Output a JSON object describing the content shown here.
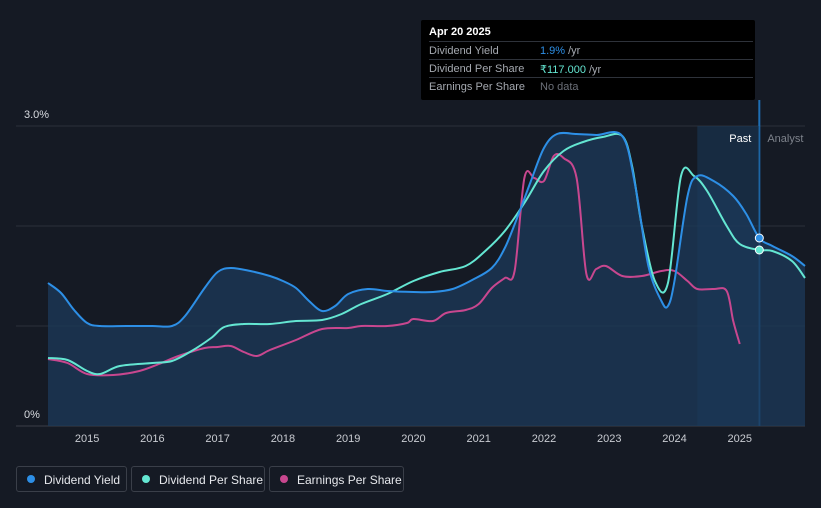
{
  "tooltip": {
    "date": "Apr 20 2025",
    "rows": [
      {
        "label": "Dividend Yield",
        "value": "1.9%",
        "unit": "/yr",
        "color": "#2d8fe6"
      },
      {
        "label": "Dividend Per Share",
        "value": "₹117.000",
        "unit": "/yr",
        "color": "#64e6d2"
      },
      {
        "label": "Earnings Per Share",
        "value": "No data",
        "unit": "",
        "color": "#6c7079"
      }
    ]
  },
  "colors": {
    "background": "#151a24",
    "dividend_yield": "#2d8fe6",
    "dividend_per_share": "#64e6d2",
    "earnings_per_share": "#c8478f",
    "area_fill": "#1c3a5a"
  },
  "chart_data": {
    "type": "line",
    "y_axis": {
      "min": 0,
      "max": 3.0,
      "unit": "%",
      "labels": [
        "3.0%",
        "0%"
      ]
    },
    "x_ticks": [
      "2015",
      "2016",
      "2017",
      "2018",
      "2019",
      "2020",
      "2021",
      "2022",
      "2023",
      "2024",
      "2025"
    ],
    "x_range": [
      2014.4,
      2026.0
    ],
    "forecast_start": 2025.3,
    "region_labels": {
      "past": "Past",
      "analyst": "Analyst"
    },
    "legend": [
      "Dividend Yield",
      "Dividend Per Share",
      "Earnings Per Share"
    ],
    "grid": true,
    "series": [
      {
        "name": "Dividend Yield",
        "key": "dividend_yield",
        "unit": "%",
        "points": [
          [
            2014.4,
            1.43
          ],
          [
            2014.6,
            1.33
          ],
          [
            2014.8,
            1.16
          ],
          [
            2015.0,
            1.03
          ],
          [
            2015.2,
            1.0
          ],
          [
            2015.6,
            1.0
          ],
          [
            2016.0,
            1.0
          ],
          [
            2016.3,
            1.0
          ],
          [
            2016.5,
            1.1
          ],
          [
            2016.8,
            1.38
          ],
          [
            2017.0,
            1.54
          ],
          [
            2017.2,
            1.58
          ],
          [
            2017.5,
            1.55
          ],
          [
            2017.8,
            1.5
          ],
          [
            2018.0,
            1.45
          ],
          [
            2018.2,
            1.38
          ],
          [
            2018.4,
            1.25
          ],
          [
            2018.6,
            1.15
          ],
          [
            2018.8,
            1.2
          ],
          [
            2019.0,
            1.32
          ],
          [
            2019.3,
            1.37
          ],
          [
            2019.6,
            1.35
          ],
          [
            2020.0,
            1.34
          ],
          [
            2020.3,
            1.34
          ],
          [
            2020.6,
            1.37
          ],
          [
            2020.9,
            1.46
          ],
          [
            2021.2,
            1.58
          ],
          [
            2021.4,
            1.78
          ],
          [
            2021.6,
            2.1
          ],
          [
            2021.8,
            2.45
          ],
          [
            2022.0,
            2.78
          ],
          [
            2022.2,
            2.92
          ],
          [
            2022.5,
            2.92
          ],
          [
            2022.8,
            2.91
          ],
          [
            2023.2,
            2.9
          ],
          [
            2023.4,
            2.4
          ],
          [
            2023.6,
            1.6
          ],
          [
            2023.8,
            1.25
          ],
          [
            2023.9,
            1.2
          ],
          [
            2024.0,
            1.45
          ],
          [
            2024.2,
            2.3
          ],
          [
            2024.35,
            2.5
          ],
          [
            2024.6,
            2.45
          ],
          [
            2024.9,
            2.3
          ],
          [
            2025.1,
            2.12
          ],
          [
            2025.3,
            1.88
          ],
          [
            2025.5,
            1.8
          ],
          [
            2025.8,
            1.7
          ],
          [
            2026.0,
            1.6
          ]
        ]
      },
      {
        "name": "Dividend Per Share",
        "key": "dividend_per_share",
        "unit": "%",
        "points": [
          [
            2014.4,
            0.68
          ],
          [
            2014.7,
            0.66
          ],
          [
            2015.0,
            0.55
          ],
          [
            2015.2,
            0.52
          ],
          [
            2015.5,
            0.6
          ],
          [
            2016.0,
            0.63
          ],
          [
            2016.3,
            0.65
          ],
          [
            2016.6,
            0.75
          ],
          [
            2016.9,
            0.88
          ],
          [
            2017.1,
            0.99
          ],
          [
            2017.4,
            1.02
          ],
          [
            2017.8,
            1.02
          ],
          [
            2018.2,
            1.05
          ],
          [
            2018.6,
            1.06
          ],
          [
            2018.9,
            1.12
          ],
          [
            2019.2,
            1.22
          ],
          [
            2019.6,
            1.32
          ],
          [
            2020.0,
            1.45
          ],
          [
            2020.4,
            1.54
          ],
          [
            2020.8,
            1.6
          ],
          [
            2021.1,
            1.75
          ],
          [
            2021.4,
            1.95
          ],
          [
            2021.7,
            2.23
          ],
          [
            2022.0,
            2.55
          ],
          [
            2022.3,
            2.75
          ],
          [
            2022.6,
            2.84
          ],
          [
            2022.9,
            2.89
          ],
          [
            2023.2,
            2.9
          ],
          [
            2023.35,
            2.6
          ],
          [
            2023.5,
            2.0
          ],
          [
            2023.7,
            1.45
          ],
          [
            2023.9,
            1.43
          ],
          [
            2024.1,
            2.5
          ],
          [
            2024.3,
            2.5
          ],
          [
            2024.5,
            2.35
          ],
          [
            2024.8,
            2.0
          ],
          [
            2025.0,
            1.82
          ],
          [
            2025.3,
            1.76
          ],
          [
            2025.5,
            1.75
          ],
          [
            2025.8,
            1.65
          ],
          [
            2026.0,
            1.48
          ]
        ]
      },
      {
        "name": "Earnings Per Share",
        "key": "earnings_per_share",
        "unit": "%",
        "points": [
          [
            2014.4,
            0.67
          ],
          [
            2014.7,
            0.63
          ],
          [
            2015.0,
            0.52
          ],
          [
            2015.4,
            0.51
          ],
          [
            2015.8,
            0.55
          ],
          [
            2016.1,
            0.62
          ],
          [
            2016.4,
            0.7
          ],
          [
            2016.8,
            0.78
          ],
          [
            2017.0,
            0.79
          ],
          [
            2017.2,
            0.8
          ],
          [
            2017.4,
            0.74
          ],
          [
            2017.6,
            0.7
          ],
          [
            2017.8,
            0.76
          ],
          [
            2018.2,
            0.86
          ],
          [
            2018.6,
            0.97
          ],
          [
            2019.0,
            0.98
          ],
          [
            2019.2,
            1.0
          ],
          [
            2019.6,
            1.0
          ],
          [
            2019.9,
            1.03
          ],
          [
            2020.0,
            1.07
          ],
          [
            2020.3,
            1.05
          ],
          [
            2020.5,
            1.13
          ],
          [
            2020.8,
            1.16
          ],
          [
            2021.0,
            1.22
          ],
          [
            2021.2,
            1.38
          ],
          [
            2021.4,
            1.48
          ],
          [
            2021.55,
            1.55
          ],
          [
            2021.7,
            2.48
          ],
          [
            2021.85,
            2.48
          ],
          [
            2022.0,
            2.45
          ],
          [
            2022.15,
            2.7
          ],
          [
            2022.3,
            2.68
          ],
          [
            2022.5,
            2.48
          ],
          [
            2022.65,
            1.52
          ],
          [
            2022.8,
            1.57
          ],
          [
            2022.95,
            1.6
          ],
          [
            2023.2,
            1.5
          ],
          [
            2023.5,
            1.5
          ],
          [
            2023.8,
            1.55
          ],
          [
            2024.0,
            1.55
          ],
          [
            2024.2,
            1.45
          ],
          [
            2024.35,
            1.37
          ],
          [
            2024.6,
            1.37
          ],
          [
            2024.8,
            1.35
          ],
          [
            2024.9,
            1.05
          ],
          [
            2025.0,
            0.82
          ]
        ]
      }
    ]
  }
}
